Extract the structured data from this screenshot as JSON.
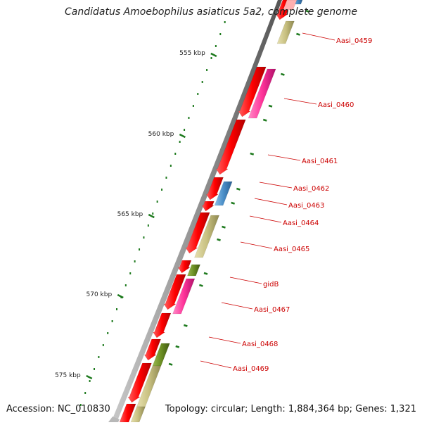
{
  "title": "Candidatus Amoebophilus asiaticus 5a2, complete genome",
  "footer": {
    "accession": "Accession: NC_010830",
    "topology": "Topology: circular; Length: 1,884,364 bp; Genes: 1,321"
  },
  "colors": {
    "backbone": "#8c8c8c",
    "forward_gene": "#ff0000",
    "label": "#cc0000",
    "tick": "#1e7a1e",
    "gene_khaki": "#c8c080",
    "gene_pink": "#ff3399",
    "gene_blue": "#4a8ec8",
    "gene_olive": "#6b8e23"
  },
  "ruler": [
    {
      "label": "555 kbp"
    },
    {
      "label": "560 kbp"
    },
    {
      "label": "565 kbp"
    },
    {
      "label": "570 kbp"
    },
    {
      "label": "575 kbp"
    }
  ],
  "gene_labels": [
    {
      "text": "Aasi_0459"
    },
    {
      "text": "Aasi_0460"
    },
    {
      "text": "Aasi_0461"
    },
    {
      "text": "Aasi_0462"
    },
    {
      "text": "Aasi_0463"
    },
    {
      "text": "Aasi_0464"
    },
    {
      "text": "Aasi_0465"
    },
    {
      "text": "gidB"
    },
    {
      "text": "Aasi_0467"
    },
    {
      "text": "Aasi_0468"
    },
    {
      "text": "Aasi_0469"
    }
  ]
}
